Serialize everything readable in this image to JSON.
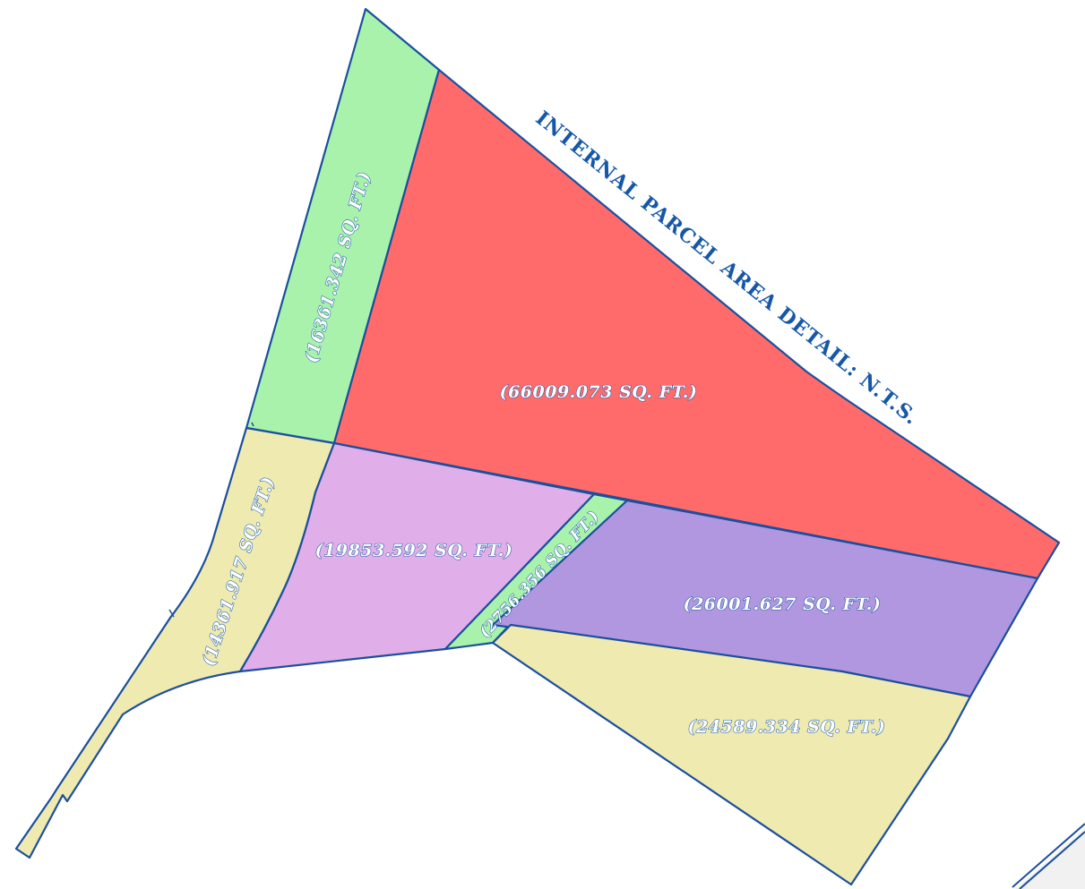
{
  "title": "INTERNAL PARCEL AREA DETAIL: N.T.S.",
  "colors": {
    "outline": "#1b4f9e",
    "green": "#a8f2ab",
    "red": "#ff6b6b",
    "yellow": "#eeeab0",
    "pink": "#e0aee8",
    "purple": "#b196e0"
  },
  "parcels": [
    {
      "id": "green-north",
      "area": "(16361.342 SQ. FT.)",
      "color": "green"
    },
    {
      "id": "red",
      "area": "(66009.073 SQ. FT.)",
      "color": "red"
    },
    {
      "id": "yellow-west",
      "area": "(14361.917 SQ. FT.)",
      "color": "yellow"
    },
    {
      "id": "pink",
      "area": "(19853.592 SQ. FT.)",
      "color": "pink"
    },
    {
      "id": "green-strip",
      "area": "(2756.356 SQ. FT.)",
      "color": "green"
    },
    {
      "id": "purple",
      "area": "(26001.627 SQ. FT.)",
      "color": "purple"
    },
    {
      "id": "yellow-south",
      "area": "(24589.334 SQ. FT.)",
      "color": "yellow"
    }
  ]
}
